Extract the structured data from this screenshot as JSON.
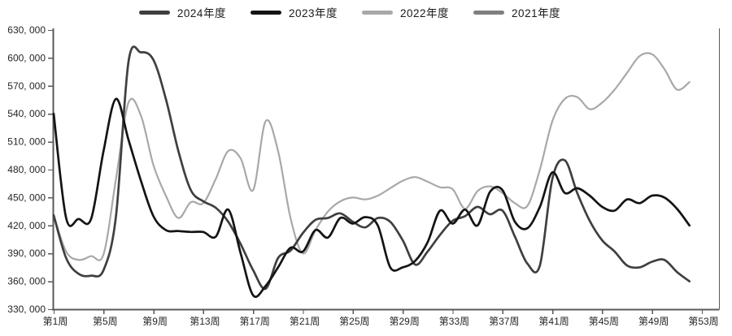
{
  "legend": {
    "items": [
      {
        "label": "2024年度",
        "color": "#3f3f3f"
      },
      {
        "label": "2023年度",
        "color": "#141414"
      },
      {
        "label": "2022年度",
        "color": "#a8a8a8"
      },
      {
        "label": "2021年度",
        "color": "#7f7f7f"
      }
    ]
  },
  "y_axis": {
    "min": 330000,
    "max": 630000,
    "step": 30000,
    "tick_labels": [
      "630, 000",
      "600, 000",
      "570, 000",
      "540, 000",
      "510, 000",
      "480, 000",
      "450, 000",
      "420, 000",
      "390, 000",
      "360, 000",
      "330, 000"
    ]
  },
  "x_axis": {
    "tick_labels": [
      "第1周",
      "第5周",
      "第9周",
      "第13周",
      "第17周",
      "第21周",
      "第25周",
      "第29周",
      "第33周",
      "第37周",
      "第41周",
      "第45周",
      "第49周",
      "第53周"
    ],
    "tick_weeks": [
      1,
      5,
      9,
      13,
      17,
      21,
      25,
      29,
      33,
      37,
      41,
      45,
      49,
      53
    ]
  },
  "chart_data": {
    "type": "line",
    "title": "",
    "xlabel": "",
    "ylabel": "",
    "x_unit": "week",
    "x": [
      1,
      2,
      3,
      4,
      5,
      6,
      7,
      8,
      9,
      10,
      11,
      12,
      13,
      14,
      15,
      16,
      17,
      18,
      19,
      20,
      21,
      22,
      23,
      24,
      25,
      26,
      27,
      28,
      29,
      30,
      31,
      32,
      33,
      34,
      35,
      36,
      37,
      38,
      39,
      40,
      41,
      42,
      43,
      44,
      45,
      46,
      47,
      48,
      49,
      50,
      51,
      52
    ],
    "ylim": [
      330000,
      630000
    ],
    "grid": false,
    "legend_position": "top",
    "series": [
      {
        "name": "2024年度",
        "color": "#3f3f3f",
        "values": [
          431000,
          385000,
          368000,
          366000,
          372000,
          430000,
          596000,
          606000,
          598000,
          556000,
          500000,
          458000,
          446000,
          439000,
          424000,
          400000,
          372000,
          352000,
          385000,
          393000,
          412000,
          426000,
          428000,
          433000,
          424000,
          418000,
          428000,
          424000,
          404000,
          378000,
          392000,
          410000,
          425000,
          430000,
          440000,
          432000,
          436000,
          408000,
          379000,
          377000,
          470000,
          490000,
          455000,
          425000,
          404000,
          392000,
          377000,
          375000,
          381000,
          383000,
          370000,
          360000
        ]
      },
      {
        "name": "2023年度",
        "color": "#141414",
        "values": [
          540000,
          428000,
          427000,
          427000,
          500000,
          556000,
          512000,
          468000,
          430000,
          415000,
          414000,
          413000,
          413000,
          408000,
          437000,
          390000,
          345000,
          355000,
          375000,
          396000,
          392000,
          415000,
          407000,
          428000,
          422000,
          429000,
          420000,
          375000,
          375000,
          382000,
          402000,
          436000,
          422000,
          437000,
          420000,
          456000,
          458000,
          424000,
          417000,
          440000,
          477000,
          455000,
          460000,
          452000,
          440000,
          436000,
          448000,
          444000,
          452000,
          450000,
          438000,
          420000
        ]
      },
      {
        "name": "2022年度",
        "color": "#a8a8a8",
        "values": [
          431000,
          392000,
          383000,
          387000,
          389000,
          470000,
          552000,
          538000,
          485000,
          452000,
          428000,
          445000,
          444000,
          470000,
          500000,
          492000,
          458000,
          532000,
          500000,
          428000,
          390000,
          415000,
          435000,
          446000,
          450000,
          448000,
          452000,
          460000,
          468000,
          472000,
          467000,
          461000,
          459000,
          438000,
          457000,
          462000,
          455000,
          444000,
          441000,
          480000,
          532000,
          556000,
          558000,
          545000,
          552000,
          566000,
          584000,
          602000,
          604000,
          588000,
          566000,
          574000
        ]
      },
      {
        "name": "2021年度",
        "color": "#7f7f7f",
        "values": []
      }
    ]
  }
}
